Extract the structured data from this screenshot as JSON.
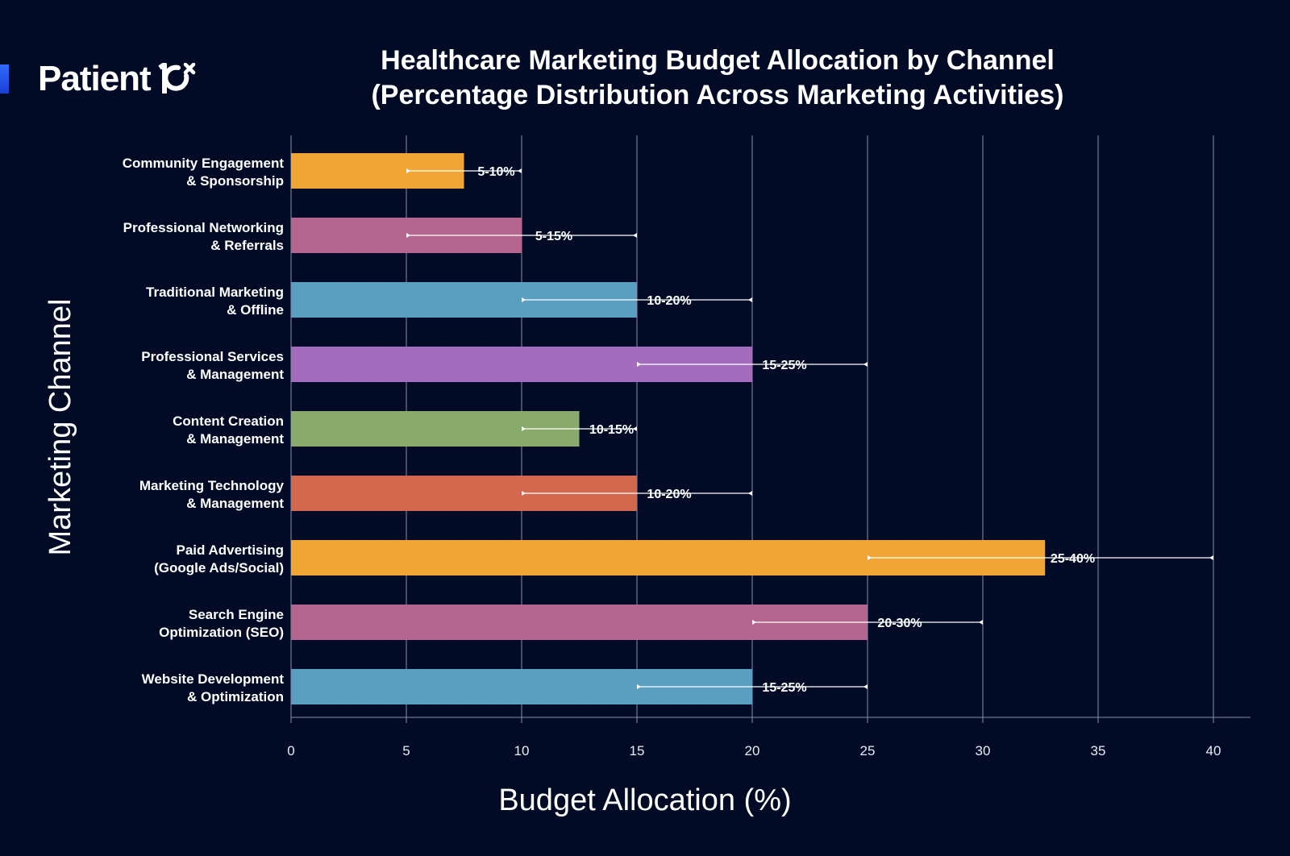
{
  "brand": {
    "name": "Patient",
    "mark": "10x"
  },
  "colors": {
    "background": "#020b26",
    "grid": "#8a91a8",
    "error_bar": "#ffffff"
  },
  "chart_data": {
    "type": "bar",
    "orientation": "horizontal",
    "title": "Healthcare Marketing Budget Allocation by Channel",
    "subtitle": "(Percentage Distribution Across Marketing Activities)",
    "xlabel": "Budget Allocation (%)",
    "ylabel": "Marketing Channel",
    "xlim": [
      0,
      41.5
    ],
    "xticks": [
      0,
      5,
      10,
      15,
      20,
      25,
      30,
      35,
      40
    ],
    "grid": "vertical",
    "bars": [
      {
        "label": [
          "Community Engagement",
          "& Sponsorship"
        ],
        "value": 7.5,
        "range": [
          5,
          10
        ],
        "range_label": "5-10%",
        "color": "#f0a535"
      },
      {
        "label": [
          "Professional Networking",
          "& Referrals"
        ],
        "value": 10,
        "range": [
          5,
          15
        ],
        "range_label": "5-15%",
        "color": "#b5668f"
      },
      {
        "label": [
          "Traditional Marketing",
          "& Offline"
        ],
        "value": 15,
        "range": [
          10,
          20
        ],
        "range_label": "10-20%",
        "color": "#5a9fbf"
      },
      {
        "label": [
          "Professional Services",
          "& Management"
        ],
        "value": 20,
        "range": [
          15,
          25
        ],
        "range_label": "15-25%",
        "color": "#a46cbd"
      },
      {
        "label": [
          "Content Creation",
          "& Management"
        ],
        "value": 12.5,
        "range": [
          10,
          15
        ],
        "range_label": "10-15%",
        "color": "#88ab6c"
      },
      {
        "label": [
          "Marketing Technology",
          "& Management"
        ],
        "value": 15,
        "range": [
          10,
          20
        ],
        "range_label": "10-20%",
        "color": "#d4684e"
      },
      {
        "label": [
          "Paid Advertising",
          "(Google Ads/Social)"
        ],
        "value": 32.7,
        "range": [
          25,
          40
        ],
        "range_label": "25-40%",
        "color": "#f0a535"
      },
      {
        "label": [
          "Search Engine",
          "Optimization (SEO)"
        ],
        "value": 25,
        "range": [
          20,
          30
        ],
        "range_label": "20-30%",
        "color": "#b5668f"
      },
      {
        "label": [
          "Website Development",
          "& Optimization"
        ],
        "value": 20,
        "range": [
          15,
          25
        ],
        "range_label": "15-25%",
        "color": "#5a9fbf"
      }
    ]
  }
}
